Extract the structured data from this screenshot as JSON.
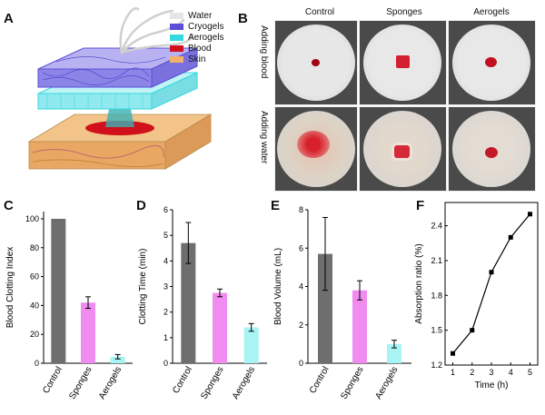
{
  "panels": {
    "a": "A",
    "b": "B",
    "c": "C",
    "d": "D",
    "e": "E",
    "f": "F"
  },
  "legend": [
    {
      "label": "Water",
      "color": "#e6e6e6"
    },
    {
      "label": "Cryogels",
      "color": "#5a4fd6"
    },
    {
      "label": "Aerogels",
      "color": "#33d9df"
    },
    {
      "label": "Blood",
      "color": "#d0101a"
    },
    {
      "label": "Skin",
      "color": "#f2b06a"
    }
  ],
  "photo_grid": {
    "columns": [
      "Control",
      "Sponges",
      "Aerogels"
    ],
    "rows": [
      "Adding blood",
      "Adding water"
    ]
  },
  "chart_data": [
    {
      "type": "bar",
      "panel": "C",
      "ylabel": "Blood Clotting Index",
      "categories": [
        "Control",
        "Sponges",
        "Aerogels"
      ],
      "values": [
        100,
        42,
        4.5
      ],
      "errors": [
        0,
        4,
        1.5
      ],
      "colors": [
        "#6e6e6e",
        "#f08cf0",
        "#a8f4f4"
      ],
      "ylim": [
        0,
        105
      ],
      "yticks": [
        "0",
        "20",
        "40",
        "60",
        "80",
        "100"
      ]
    },
    {
      "type": "bar",
      "panel": "D",
      "ylabel": "Clotting Time (min)",
      "categories": [
        "Control",
        "Sponges",
        "Aerogels"
      ],
      "values": [
        4.7,
        2.75,
        1.4
      ],
      "errors": [
        0.8,
        0.15,
        0.15
      ],
      "colors": [
        "#6e6e6e",
        "#f08cf0",
        "#a8f4f4"
      ],
      "ylim": [
        0,
        6
      ],
      "yticks": [
        "0",
        "1",
        "2",
        "3",
        "4",
        "5",
        "6"
      ]
    },
    {
      "type": "bar",
      "panel": "E",
      "ylabel": "Blood Volume (mL)",
      "categories": [
        "Control",
        "Sponges",
        "Aerogels"
      ],
      "values": [
        5.7,
        3.8,
        1.0
      ],
      "errors": [
        1.9,
        0.5,
        0.2
      ],
      "colors": [
        "#6e6e6e",
        "#f08cf0",
        "#a8f4f4"
      ],
      "ylim": [
        0,
        8
      ],
      "yticks": [
        "0",
        "2",
        "4",
        "6",
        "8"
      ]
    },
    {
      "type": "line",
      "panel": "F",
      "xlabel": "Time (h)",
      "ylabel": "Absorption ratio (%)",
      "x": [
        1,
        2,
        3,
        4,
        5
      ],
      "y": [
        1.3,
        1.5,
        2.0,
        2.3,
        2.5
      ],
      "xlim": [
        0.6,
        5.4
      ],
      "ylim": [
        1.2,
        2.6
      ],
      "xticks": [
        "1",
        "2",
        "3",
        "4",
        "5"
      ],
      "yticks": [
        "1.2",
        "1.5",
        "1.8",
        "2.1",
        "2.4"
      ]
    }
  ]
}
